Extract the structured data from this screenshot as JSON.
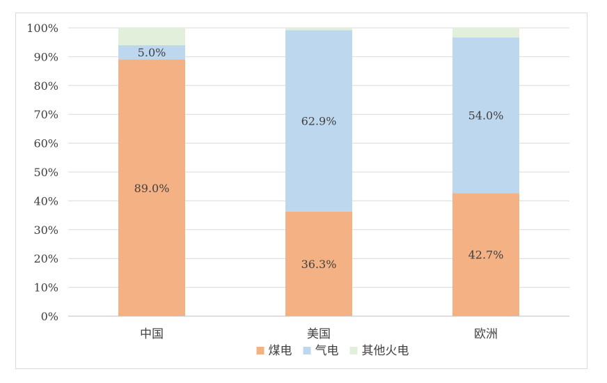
{
  "chart_data": {
    "type": "bar",
    "stacked": true,
    "categories": [
      "中国",
      "美国",
      "欧洲"
    ],
    "series": [
      {
        "name": "煤电",
        "values": [
          89.0,
          36.3,
          42.7
        ],
        "labels": [
          "89.0%",
          "36.3%",
          "42.7%"
        ],
        "color": "#f4b183"
      },
      {
        "name": "气电",
        "values": [
          5.0,
          62.9,
          54.0
        ],
        "labels": [
          "5.0%",
          "62.9%",
          "54.0%"
        ],
        "color": "#bdd7ee"
      },
      {
        "name": "其他火电",
        "values": [
          6.0,
          0.8,
          3.3
        ],
        "labels": [
          "",
          "",
          ""
        ],
        "color": "#e2efda"
      }
    ],
    "ylim": [
      0,
      100
    ],
    "yticks": [
      "0%",
      "10%",
      "20%",
      "30%",
      "40%",
      "50%",
      "60%",
      "70%",
      "80%",
      "90%",
      "100%"
    ],
    "title": "",
    "xlabel": "",
    "ylabel": "",
    "grid": true,
    "legend_position": "bottom"
  }
}
